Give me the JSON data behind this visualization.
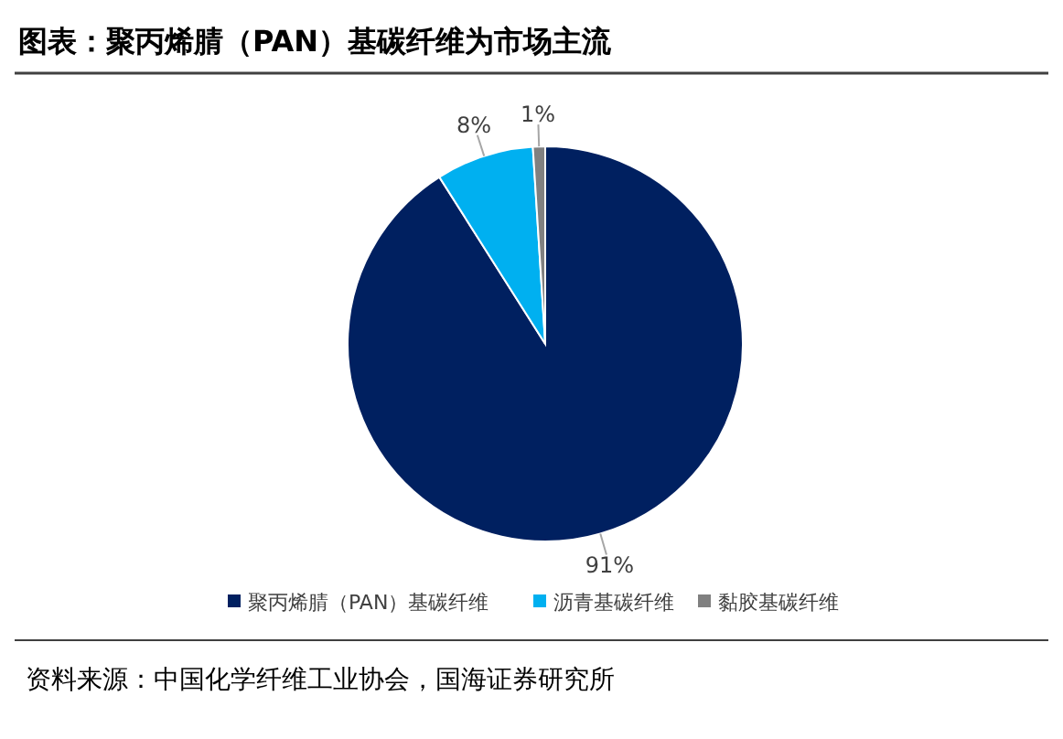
{
  "chart_data": {
    "type": "pie",
    "title": "图表：聚丙烯腈（PAN）基碳纤维为市场主流",
    "categories": [
      "聚丙烯腈（PAN）基碳纤维",
      "沥青基碳纤维",
      "黏胶基碳纤维"
    ],
    "values": [
      91,
      8,
      1
    ],
    "colors": [
      "#002060",
      "#00b0f0",
      "#808080"
    ],
    "value_labels": [
      "91%",
      "8%",
      "1%"
    ],
    "legend": "bottom",
    "annotations": [
      "资料来源：中国化学纤维工业协会，国海证券研究所"
    ]
  }
}
